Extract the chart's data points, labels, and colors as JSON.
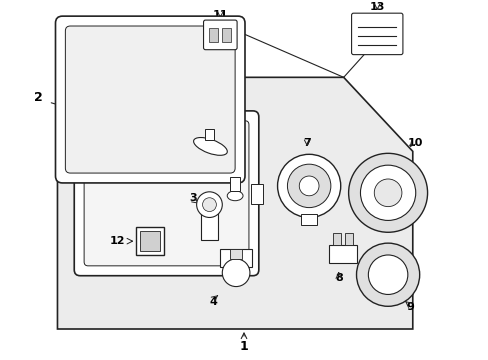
{
  "bg_color": "#ffffff",
  "box_fill": "#ececec",
  "line_color": "#222222",
  "white": "#ffffff",
  "gray1": "#cccccc",
  "gray2": "#aaaaaa",
  "label_color": "#000000"
}
